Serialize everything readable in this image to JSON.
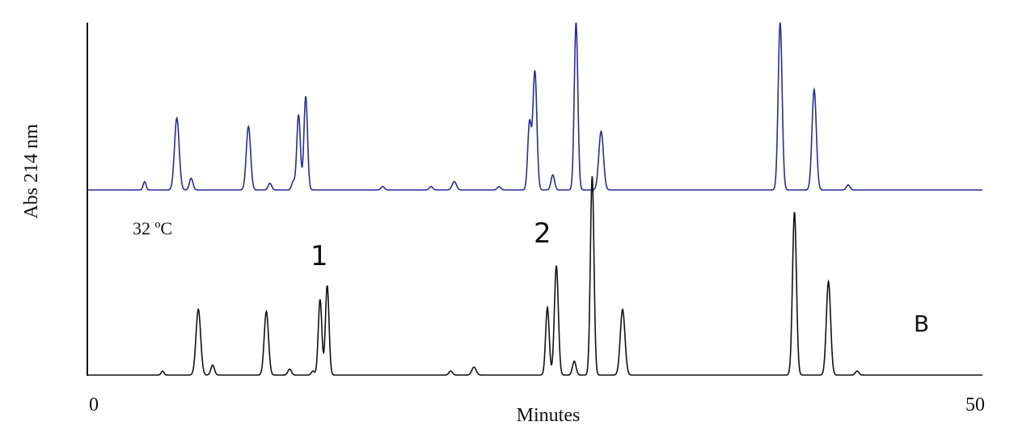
{
  "chart_data": {
    "type": "line",
    "xlabel": "Minutes",
    "ylabel": "Abs 214 nm",
    "xlim": [
      0,
      50
    ],
    "x_ticks": [
      "0",
      "50"
    ],
    "grid": false,
    "annotations": {
      "temperature": "32 ºC",
      "peak_label_1": "1",
      "peak_label_2": "2",
      "panel_label": "B"
    },
    "series": [
      {
        "color": "#2a2aa0",
        "baseline": 0,
        "peaks": [
          {
            "x": 3.2,
            "h": 0.05,
            "w": 0.08
          },
          {
            "x": 5.0,
            "h": 0.43,
            "w": 0.13
          },
          {
            "x": 5.8,
            "h": 0.07,
            "w": 0.1
          },
          {
            "x": 9.0,
            "h": 0.38,
            "w": 0.12
          },
          {
            "x": 10.2,
            "h": 0.04,
            "w": 0.1
          },
          {
            "x": 11.5,
            "h": 0.05,
            "w": 0.09
          },
          {
            "x": 11.8,
            "h": 0.45,
            "w": 0.1
          },
          {
            "x": 12.2,
            "h": 0.56,
            "w": 0.1
          },
          {
            "x": 16.5,
            "h": 0.02,
            "w": 0.1
          },
          {
            "x": 19.2,
            "h": 0.02,
            "w": 0.1
          },
          {
            "x": 20.5,
            "h": 0.05,
            "w": 0.12
          },
          {
            "x": 23.0,
            "h": 0.02,
            "w": 0.1
          },
          {
            "x": 24.7,
            "h": 0.4,
            "w": 0.1
          },
          {
            "x": 25.0,
            "h": 0.71,
            "w": 0.11
          },
          {
            "x": 26.0,
            "h": 0.09,
            "w": 0.1
          },
          {
            "x": 27.3,
            "h": 1.0,
            "w": 0.1
          },
          {
            "x": 28.7,
            "h": 0.35,
            "w": 0.13
          },
          {
            "x": 38.7,
            "h": 1.0,
            "w": 0.11
          },
          {
            "x": 40.6,
            "h": 0.6,
            "w": 0.12
          },
          {
            "x": 42.5,
            "h": 0.03,
            "w": 0.1
          }
        ]
      },
      {
        "color": "#111111",
        "baseline": 0,
        "peaks": [
          {
            "x": 4.2,
            "h": 0.02,
            "w": 0.08
          },
          {
            "x": 6.2,
            "h": 0.33,
            "w": 0.13
          },
          {
            "x": 7.0,
            "h": 0.05,
            "w": 0.1
          },
          {
            "x": 10.0,
            "h": 0.32,
            "w": 0.12
          },
          {
            "x": 11.3,
            "h": 0.03,
            "w": 0.1
          },
          {
            "x": 12.6,
            "h": 0.02,
            "w": 0.09
          },
          {
            "x": 13.0,
            "h": 0.38,
            "w": 0.1
          },
          {
            "x": 13.4,
            "h": 0.45,
            "w": 0.1
          },
          {
            "x": 20.3,
            "h": 0.02,
            "w": 0.1
          },
          {
            "x": 21.6,
            "h": 0.04,
            "w": 0.12
          },
          {
            "x": 25.7,
            "h": 0.34,
            "w": 0.1
          },
          {
            "x": 26.2,
            "h": 0.55,
            "w": 0.11
          },
          {
            "x": 27.2,
            "h": 0.07,
            "w": 0.1
          },
          {
            "x": 28.2,
            "h": 1.0,
            "w": 0.1
          },
          {
            "x": 29.9,
            "h": 0.33,
            "w": 0.13
          },
          {
            "x": 39.5,
            "h": 0.82,
            "w": 0.11
          },
          {
            "x": 41.4,
            "h": 0.47,
            "w": 0.12
          },
          {
            "x": 43.0,
            "h": 0.02,
            "w": 0.1
          }
        ]
      }
    ]
  }
}
